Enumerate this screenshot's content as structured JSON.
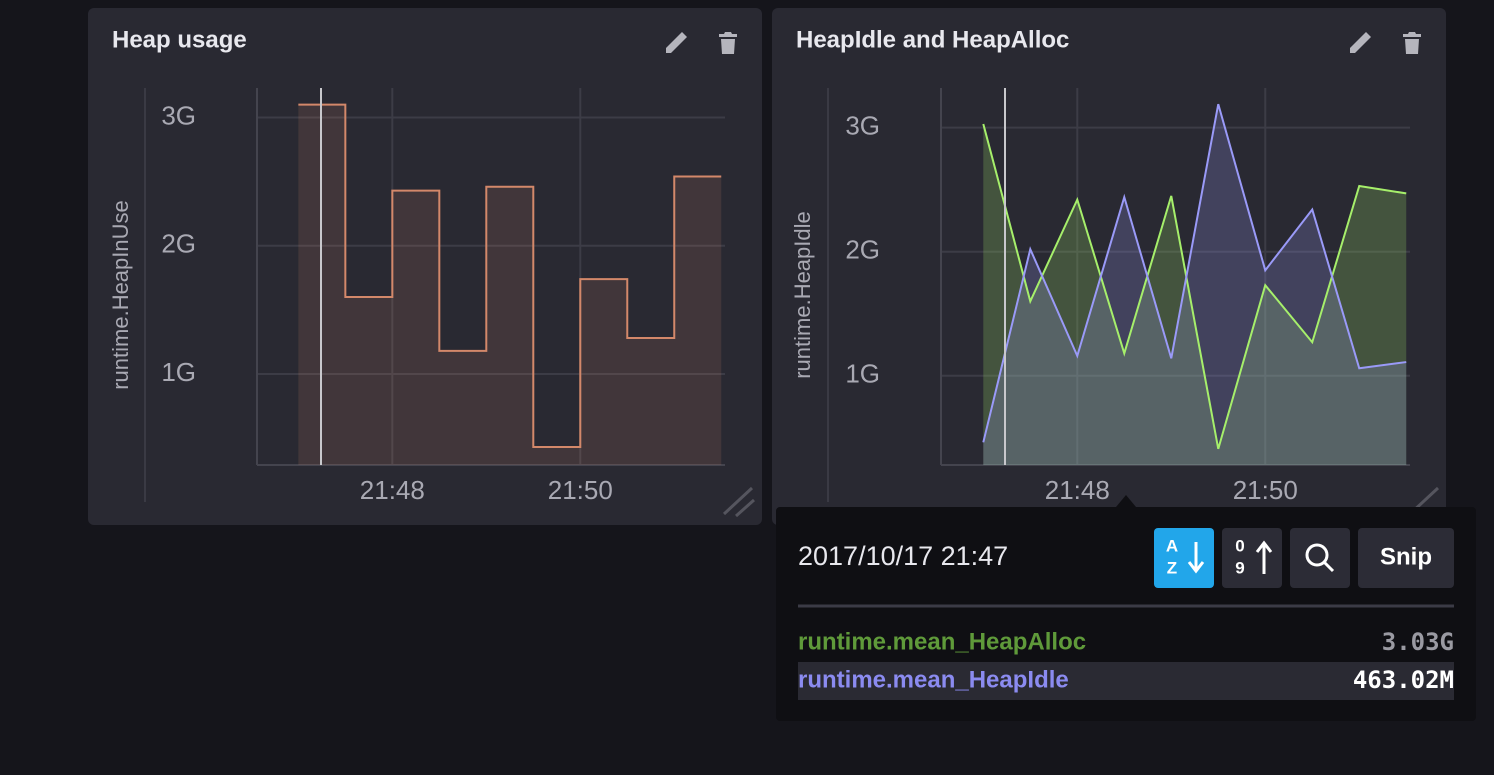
{
  "chart_data": [
    {
      "type": "step",
      "title": "Heap usage",
      "y_label": "runtime.HeapInUse",
      "color": "#d3886a",
      "x": [
        47,
        47.5,
        48,
        48.5,
        49,
        49.5,
        50,
        50.5,
        51
      ],
      "values": [
        3.1,
        1.6,
        2.43,
        1.18,
        2.46,
        0.43,
        1.74,
        1.28,
        2.54
      ],
      "xlim": [
        46.56,
        51.54
      ],
      "ylim": [
        0.29,
        3.23
      ],
      "xticks": [
        {
          "value": 48,
          "label": "21:48"
        },
        {
          "value": 50,
          "label": "21:50"
        }
      ],
      "yticks": [
        {
          "value": 1,
          "label": "1G"
        },
        {
          "value": 2,
          "label": "2G"
        },
        {
          "value": 3,
          "label": "3G"
        }
      ],
      "grid": true
    },
    {
      "type": "area",
      "title": "HeapIdle and HeapAlloc",
      "y_label": "runtime.HeapIdle",
      "x": [
        47,
        47.5,
        48,
        48.5,
        49,
        49.5,
        50,
        50.5,
        51,
        51.5
      ],
      "series": [
        {
          "name": "runtime.mean_HeapAlloc",
          "color": "#a6ef6b",
          "values": [
            3.03,
            1.6,
            2.42,
            1.18,
            2.45,
            0.41,
            1.73,
            1.27,
            2.53,
            2.47
          ]
        },
        {
          "name": "runtime.mean_HeapIdle",
          "color": "#9a9af8",
          "values": [
            0.463,
            2.02,
            1.16,
            2.44,
            1.14,
            3.19,
            1.85,
            2.34,
            1.06,
            1.11
          ]
        }
      ],
      "xlim": [
        46.55,
        51.54
      ],
      "ylim": [
        0.28,
        3.32
      ],
      "xticks": [
        {
          "value": 48,
          "label": "21:48"
        },
        {
          "value": 50,
          "label": "21:50"
        }
      ],
      "yticks": [
        {
          "value": 1,
          "label": "1G"
        },
        {
          "value": 2,
          "label": "2G"
        },
        {
          "value": 3,
          "label": "3G"
        }
      ],
      "grid": true
    }
  ],
  "tooltip": {
    "date": "2017/10/17 21:47",
    "sort_az": [
      "A",
      "Z"
    ],
    "sort_09": [
      "0",
      "9"
    ],
    "snip": "Snip",
    "rows": [
      {
        "name": "runtime.mean_HeapAlloc",
        "value": "3.03G",
        "name_color": "#5f9a3a",
        "value_color": "#9a9aa2"
      },
      {
        "name": "runtime.mean_HeapIdle",
        "value": "463.02M",
        "name_color": "#8b8bf0",
        "value_color": "#ffffff"
      }
    ]
  }
}
